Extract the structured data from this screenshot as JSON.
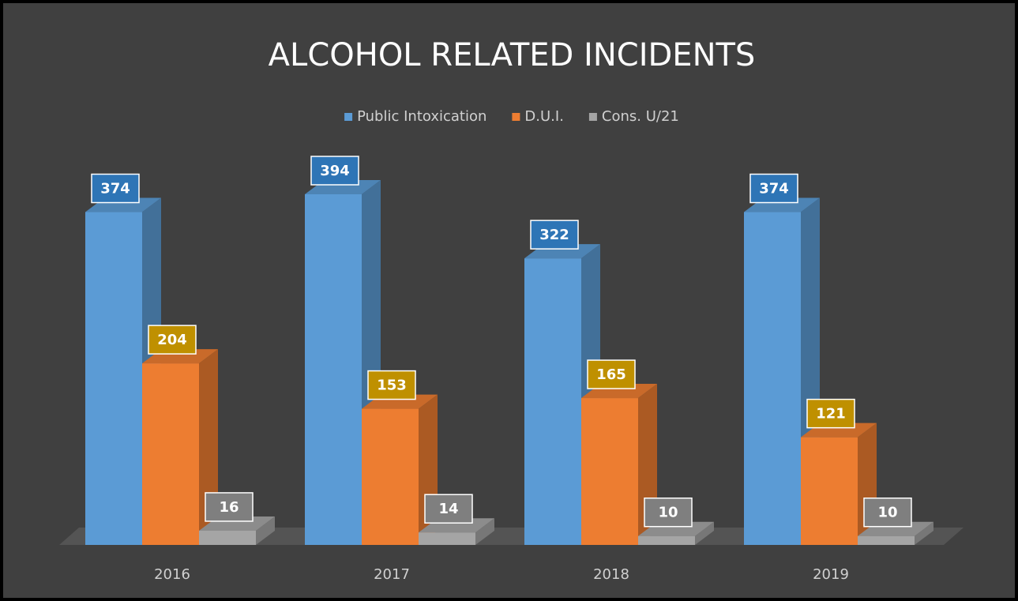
{
  "chart_data": {
    "type": "bar3d",
    "title": "ALCOHOL RELATED INCIDENTS",
    "categories": [
      "2016",
      "2017",
      "2018",
      "2019"
    ],
    "series": [
      {
        "name": "Public Intoxication",
        "color": "#5b9bd5",
        "label_color": "#2e75b6",
        "values": [
          374,
          394,
          322,
          374
        ]
      },
      {
        "name": "D.U.I.",
        "color": "#ed7d31",
        "label_color": "#bf9000",
        "values": [
          204,
          153,
          165,
          121
        ]
      },
      {
        "name": "Cons. U/21",
        "color": "#a5a5a5",
        "label_color": "#7f7f7f",
        "values": [
          16,
          14,
          10,
          10
        ]
      }
    ],
    "legend": "top",
    "data_labels": true
  }
}
